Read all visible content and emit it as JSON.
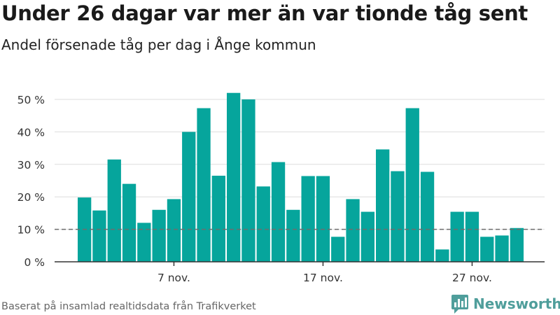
{
  "header": {
    "title": "Under 26 dagar var mer än var tionde tåg sent",
    "subtitle": "Andel försenade tåg per dag i Ånge kommun"
  },
  "footer": {
    "source": "Baserat på insamlad realtidsdata från Trafikverket",
    "brand": "Newsworthy"
  },
  "colors": {
    "bar": "#06a59c",
    "reference_line": "#6e6e6e",
    "grid": "#dddddd",
    "axis": "#333333"
  },
  "chart_data": {
    "type": "bar",
    "title": "Under 26 dagar var mer än var tionde tåg sent",
    "subtitle": "Andel försenade tåg per dag i Ånge kommun",
    "xlabel": "",
    "ylabel": "",
    "ylim": [
      0,
      55
    ],
    "yticks": [
      0,
      10,
      20,
      30,
      40,
      50
    ],
    "ytick_labels": [
      "0 %",
      "10 %",
      "20 %",
      "30 %",
      "40 %",
      "50 %"
    ],
    "categories": [
      "1 nov.",
      "2 nov.",
      "3 nov.",
      "4 nov.",
      "5 nov.",
      "6 nov.",
      "7 nov.",
      "8 nov.",
      "9 nov.",
      "10 nov.",
      "11 nov.",
      "12 nov.",
      "13 nov.",
      "14 nov.",
      "15 nov.",
      "16 nov.",
      "17 nov.",
      "18 nov.",
      "19 nov.",
      "20 nov.",
      "21 nov.",
      "22 nov.",
      "23 nov.",
      "24 nov.",
      "25 nov.",
      "26 nov.",
      "27 nov.",
      "28 nov.",
      "29 nov.",
      "30 nov."
    ],
    "values": [
      19.8,
      15.8,
      31.5,
      24,
      12,
      16,
      19.3,
      40,
      47.3,
      26.5,
      52,
      50,
      23.2,
      30.7,
      16,
      26.4,
      26.4,
      7.7,
      19.3,
      15.4,
      34.6,
      27.9,
      47.3,
      27.7,
      3.8,
      15.4,
      15.4,
      7.7,
      8.1,
      10.4
    ],
    "x_tick_labels": [
      {
        "category": "7 nov.",
        "label": "7 nov."
      },
      {
        "category": "17 nov.",
        "label": "17 nov."
      },
      {
        "category": "27 nov.",
        "label": "27 nov."
      }
    ],
    "reference_line": {
      "value": 10,
      "style": "dashed"
    },
    "grid": true,
    "legend": "none"
  }
}
